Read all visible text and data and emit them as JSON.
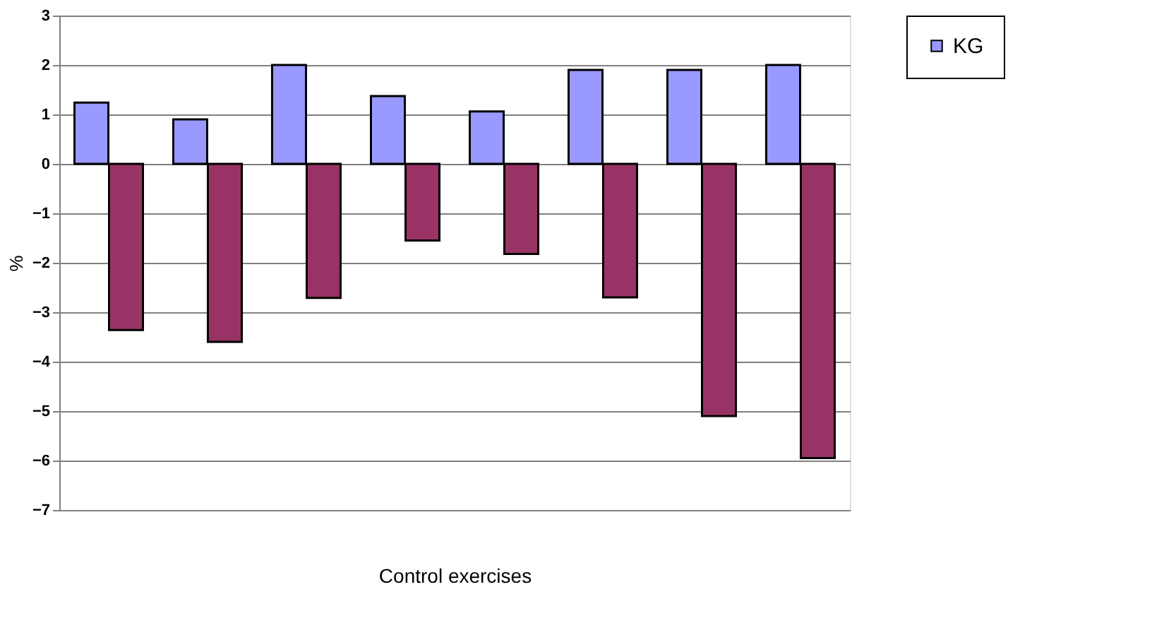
{
  "chart_data": {
    "type": "bar",
    "xlabel": "Control exercises",
    "ylabel": "%",
    "categories": [
      null,
      null,
      null,
      null,
      null,
      null,
      null,
      null
    ],
    "series": [
      {
        "name": "KG",
        "color": "#9999ff",
        "values": [
          1.24,
          0.9,
          2.0,
          1.37,
          1.06,
          1.9,
          1.9,
          2.0
        ]
      },
      {
        "color": "#993366",
        "values": [
          -3.36,
          -3.6,
          -2.71,
          -1.55,
          -1.82,
          -2.7,
          -5.1,
          -5.95
        ]
      }
    ],
    "ylim": [
      -7,
      3
    ],
    "yticks": [
      -7,
      -6,
      -5,
      -4,
      -3,
      -2,
      -1,
      0,
      1,
      2,
      3
    ],
    "grid": "y",
    "legend": "right",
    "tick_labels": "y"
  }
}
